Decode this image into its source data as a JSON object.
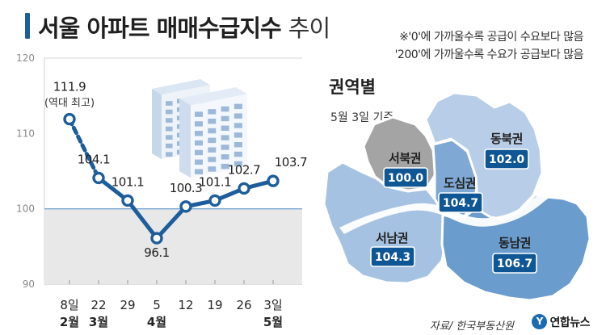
{
  "header": {
    "title_main": "서울 아파트 매매수급지수",
    "title_suffix": "추이"
  },
  "notes": {
    "line1": "※'0'에 가까울수록 공급이 수요보다 많음",
    "line2": "'200'에 가까울수록 수요가 공급보다 많음"
  },
  "chart_data": [
    {
      "type": "line",
      "x": [
        "8일 2월",
        "22 3월",
        "29",
        "5 4월",
        "12",
        "19",
        "26",
        "3일 5월"
      ],
      "x_ticks": [
        {
          "top": "8일",
          "bottom": "2월"
        },
        {
          "top": "22",
          "bottom": "3월"
        },
        {
          "top": "29",
          "bottom": ""
        },
        {
          "top": "5",
          "bottom": "4월"
        },
        {
          "top": "12",
          "bottom": ""
        },
        {
          "top": "19",
          "bottom": ""
        },
        {
          "top": "26",
          "bottom": ""
        },
        {
          "top": "3일",
          "bottom": "5월"
        }
      ],
      "y": [
        111.9,
        104.1,
        101.1,
        96.1,
        100.3,
        101.1,
        102.7,
        103.7
      ],
      "data_labels": [
        "111.9",
        "104.1",
        "101.1",
        "96.1",
        "100.3",
        "101.1",
        "102.7",
        "103.7"
      ],
      "annotations": [
        {
          "point_index": 0,
          "text": "(역대 최고)"
        }
      ],
      "dashed_segments": [
        0
      ],
      "ylim": [
        90,
        120
      ],
      "y_ticks": [
        90,
        100,
        110,
        120
      ],
      "reference_line": 100,
      "shaded_below": 100,
      "grid": false,
      "legend": "none",
      "title": "",
      "xlabel": "",
      "ylabel": "",
      "colors": {
        "line": "#1d5d9b",
        "shade": "#e8e8e8",
        "reference": "#7aa7d2"
      }
    },
    {
      "type": "choropleth-map",
      "title": "권역별",
      "subtitle": "5월 3일 기준",
      "categories": [
        "서북권",
        "도심권",
        "동북권",
        "서남권",
        "동남권"
      ],
      "values": [
        100.0,
        104.7,
        102.0,
        104.3,
        106.7
      ],
      "value_labels": [
        "100.0",
        "104.7",
        "102.0",
        "104.3",
        "106.7"
      ],
      "colors": {
        "서북권": "#a4a4a4",
        "도심권": "#7fa8d4",
        "동북권": "#b8cde7",
        "서남권": "#a6c2e2",
        "동남권": "#6a9ccd",
        "label_box": "#0f5694"
      }
    }
  ],
  "footer": {
    "source": "자료/ 한국부동산원",
    "logo_mark": "Y",
    "logo_text": "연합뉴스"
  }
}
